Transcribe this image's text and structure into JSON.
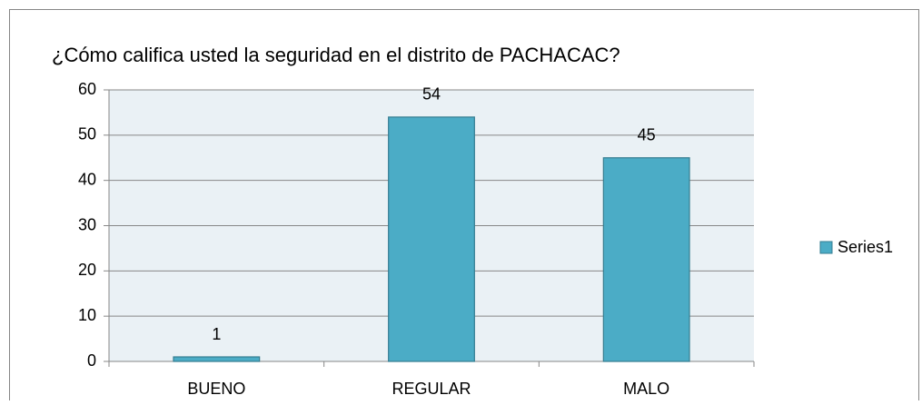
{
  "chart_data": {
    "type": "bar",
    "title": "¿Cómo califica usted la seguridad en el distrito de PACHACAC?",
    "categories": [
      "BUENO",
      "REGULAR",
      "MALO"
    ],
    "series": [
      {
        "name": "Series1",
        "color": "#4bacc6",
        "values": [
          1,
          54,
          45
        ]
      }
    ],
    "ylim": [
      0,
      60
    ],
    "yticks": [
      0,
      10,
      20,
      30,
      40,
      50,
      60
    ],
    "grid": true,
    "legend": "right"
  }
}
